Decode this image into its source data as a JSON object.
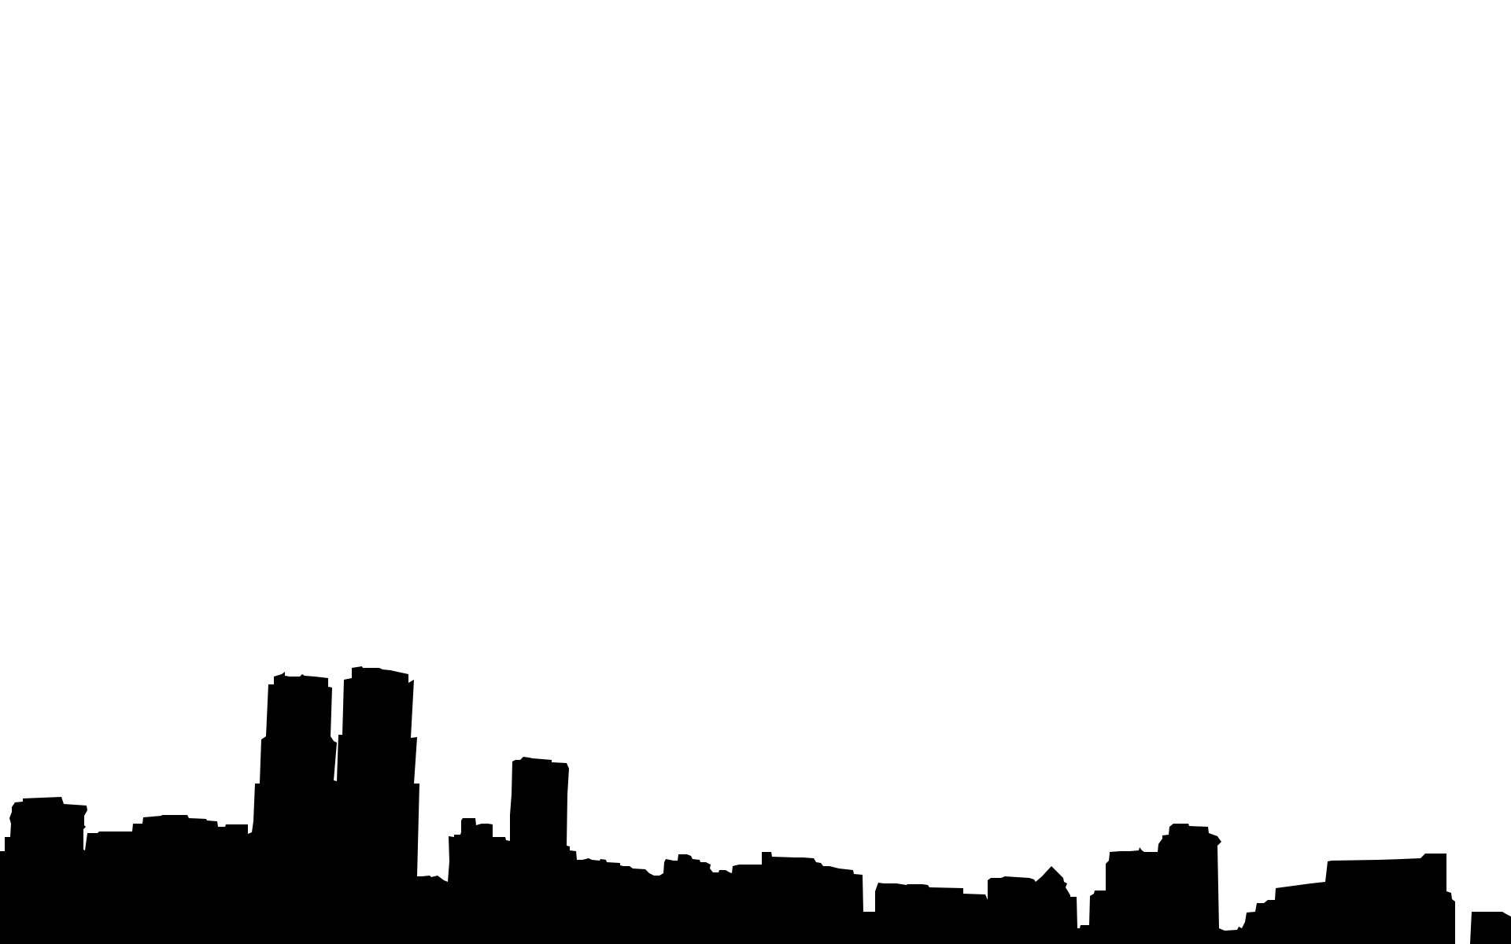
{
  "scene": {
    "subject": "city-skyline-silhouette",
    "colors": {
      "background": "#ffffff",
      "silhouette": "#000000"
    }
  }
}
